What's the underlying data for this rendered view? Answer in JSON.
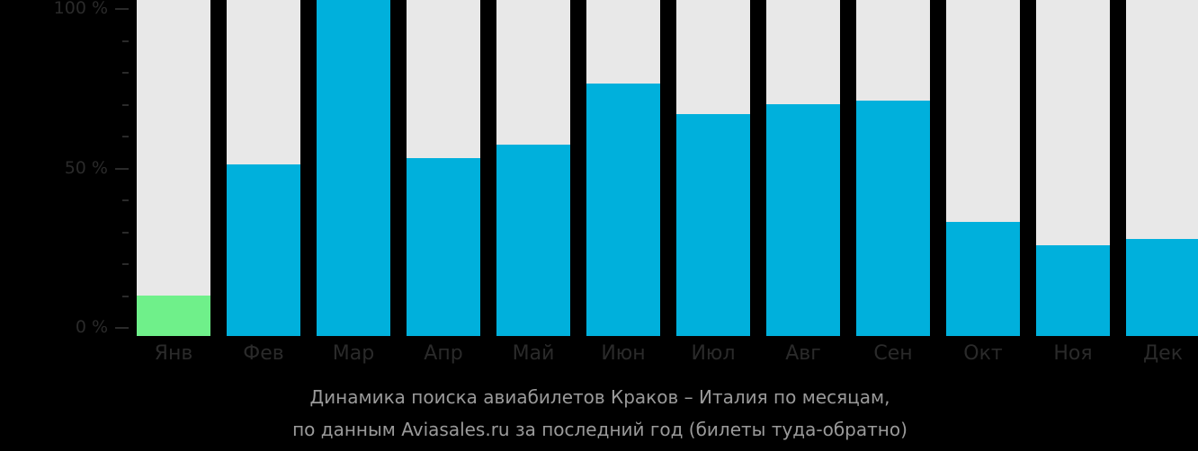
{
  "chart_data": {
    "type": "bar",
    "title": "Динамика поиска авиабилетов Краков – Италия по месяцам, по данным Aviasales.ru за последний год (билеты туда-обратно)",
    "xlabel": "",
    "ylabel": "",
    "ylim": [
      0,
      100
    ],
    "yticks": [
      "100 %",
      "50 %",
      "0 %"
    ],
    "grid": false,
    "legend": null,
    "categories": [
      "Янв",
      "Фев",
      "Мар",
      "Апр",
      "Май",
      "Июн",
      "Июл",
      "Авг",
      "Сен",
      "Окт",
      "Ноя",
      "Дек"
    ],
    "values": [
      12,
      51,
      100,
      53,
      57,
      75,
      66,
      69,
      70,
      34,
      27,
      29
    ],
    "colors": {
      "highlight_min": "#6ff08a",
      "bar": "#00b0dc",
      "background_bar": "#e8e8e8"
    }
  },
  "caption": {
    "line1": "Динамика поиска авиабилетов Краков – Италия по месяцам,",
    "line2": "по данным Aviasales.ru за последний год (билеты туда-обратно)"
  }
}
